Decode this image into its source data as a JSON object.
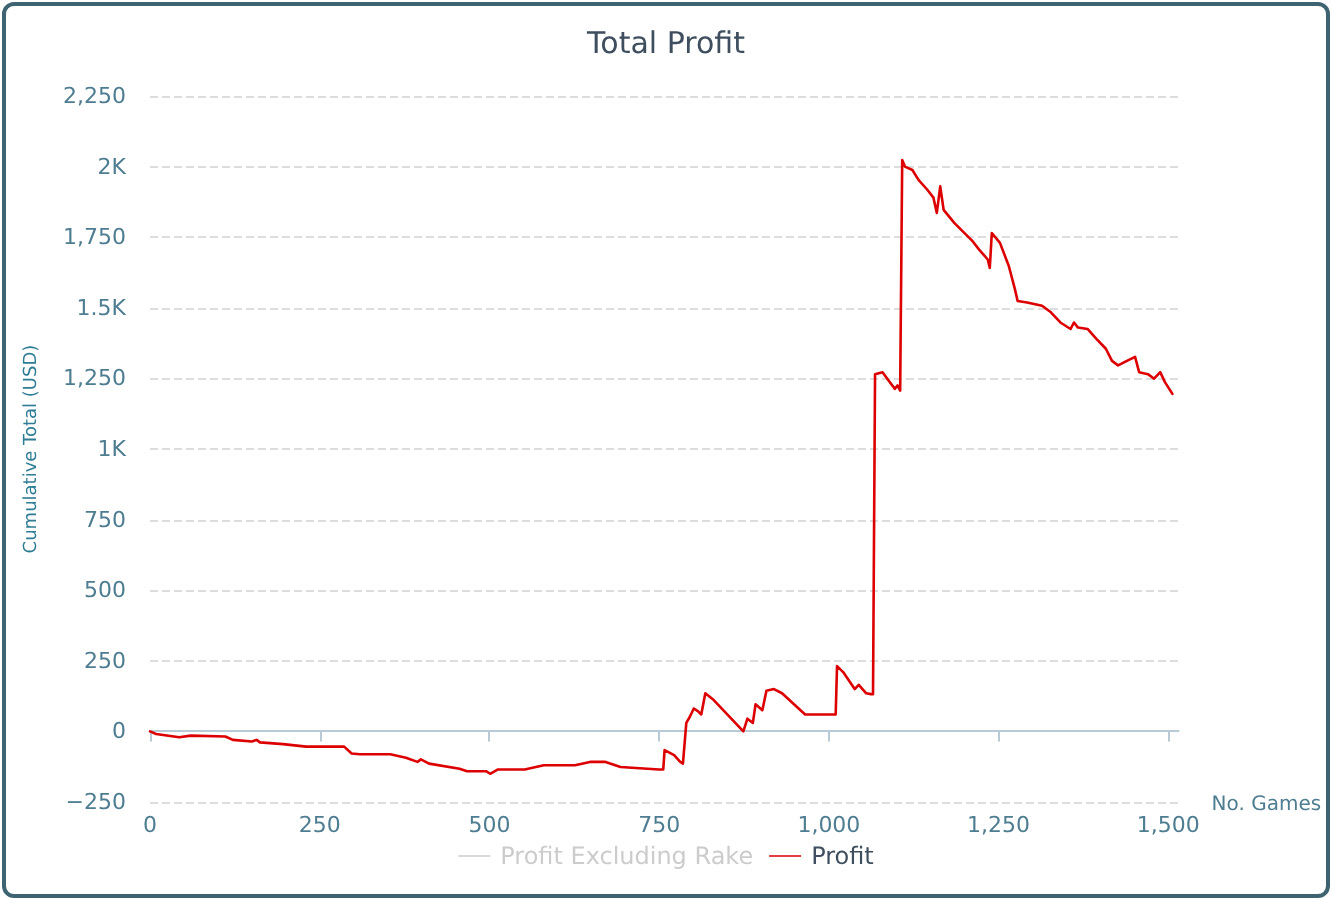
{
  "chart_data": {
    "type": "line",
    "title": "Total Profit",
    "xlabel": "No. Games",
    "ylabel": "Cumulative Total (USD)",
    "xlim": [
      0,
      1515
    ],
    "ylim": [
      -250,
      2250
    ],
    "xticks": [
      0,
      250,
      500,
      750,
      {
        "value": 1000,
        "label": "1,000"
      },
      {
        "value": 1250,
        "label": "1,250"
      },
      {
        "value": 1500,
        "label": "1,500"
      }
    ],
    "yticks": [
      {
        "value": -250,
        "label": "−250"
      },
      0,
      250,
      500,
      750,
      {
        "value": 1000,
        "label": "1K"
      },
      {
        "value": 1250,
        "label": "1,250"
      },
      {
        "value": 1500,
        "label": "1.5K"
      },
      {
        "value": 1750,
        "label": "1,750"
      },
      {
        "value": 2000,
        "label": "2K"
      },
      {
        "value": 2250,
        "label": "2,250"
      }
    ],
    "grid": "y",
    "legend": "bottom",
    "marker": "none",
    "line_style": "solid",
    "series": [
      {
        "name": "Profit Excluding Rake",
        "color": "#cccccc"
      },
      {
        "name": "Profit",
        "color": "#dd0000",
        "x": [
          0,
          9,
          43,
          60,
          111,
          122,
          150,
          157,
          162,
          196,
          230,
          286,
          297,
          309,
          354,
          377,
          394,
          399,
          411,
          456,
          467,
          495,
          501,
          512,
          552,
          580,
          626,
          648,
          671,
          693,
          750,
          756,
          758,
          772,
          781,
          785,
          790,
          795,
          801,
          807,
          812,
          818,
          829,
          874,
          880,
          888,
          892,
          902,
          908,
          919,
          931,
          965,
          1010,
          1012,
          1021,
          1038,
          1044,
          1055,
          1062,
          1065,
          1068,
          1079,
          1086,
          1097,
          1101,
          1105,
          1108,
          1112,
          1123,
          1132,
          1145,
          1154,
          1159,
          1164,
          1169,
          1185,
          1212,
          1221,
          1234,
          1237,
          1240,
          1252,
          1265,
          1274,
          1278,
          1292,
          1314,
          1327,
          1341,
          1356,
          1361,
          1367,
          1381,
          1394,
          1408,
          1417,
          1426,
          1439,
          1451,
          1457,
          1470,
          1479,
          1488,
          1495,
          1506
        ],
        "values": [
          0,
          -9,
          -21,
          -15,
          -18,
          -30,
          -36,
          -30,
          -39,
          -45,
          -54,
          -54,
          -78,
          -81,
          -81,
          -93,
          -108,
          -99,
          -114,
          -132,
          -141,
          -141,
          -150,
          -135,
          -135,
          -120,
          -120,
          -108,
          -108,
          -126,
          -135,
          -135,
          -66,
          -84,
          -108,
          -114,
          30,
          51,
          81,
          72,
          60,
          135,
          114,
          0,
          45,
          30,
          96,
          75,
          144,
          150,
          135,
          60,
          60,
          231,
          210,
          150,
          165,
          135,
          132,
          132,
          1265,
          1272,
          1249,
          1213,
          1225,
          1207,
          2023,
          2000,
          1988,
          1953,
          1918,
          1890,
          1836,
          1930,
          1847,
          1800,
          1735,
          1707,
          1671,
          1641,
          1765,
          1730,
          1648,
          1566,
          1524,
          1519,
          1507,
          1484,
          1448,
          1425,
          1448,
          1430,
          1425,
          1390,
          1355,
          1312,
          1296,
          1312,
          1326,
          1272,
          1265,
          1249,
          1272,
          1237,
          1195
        ]
      }
    ]
  }
}
